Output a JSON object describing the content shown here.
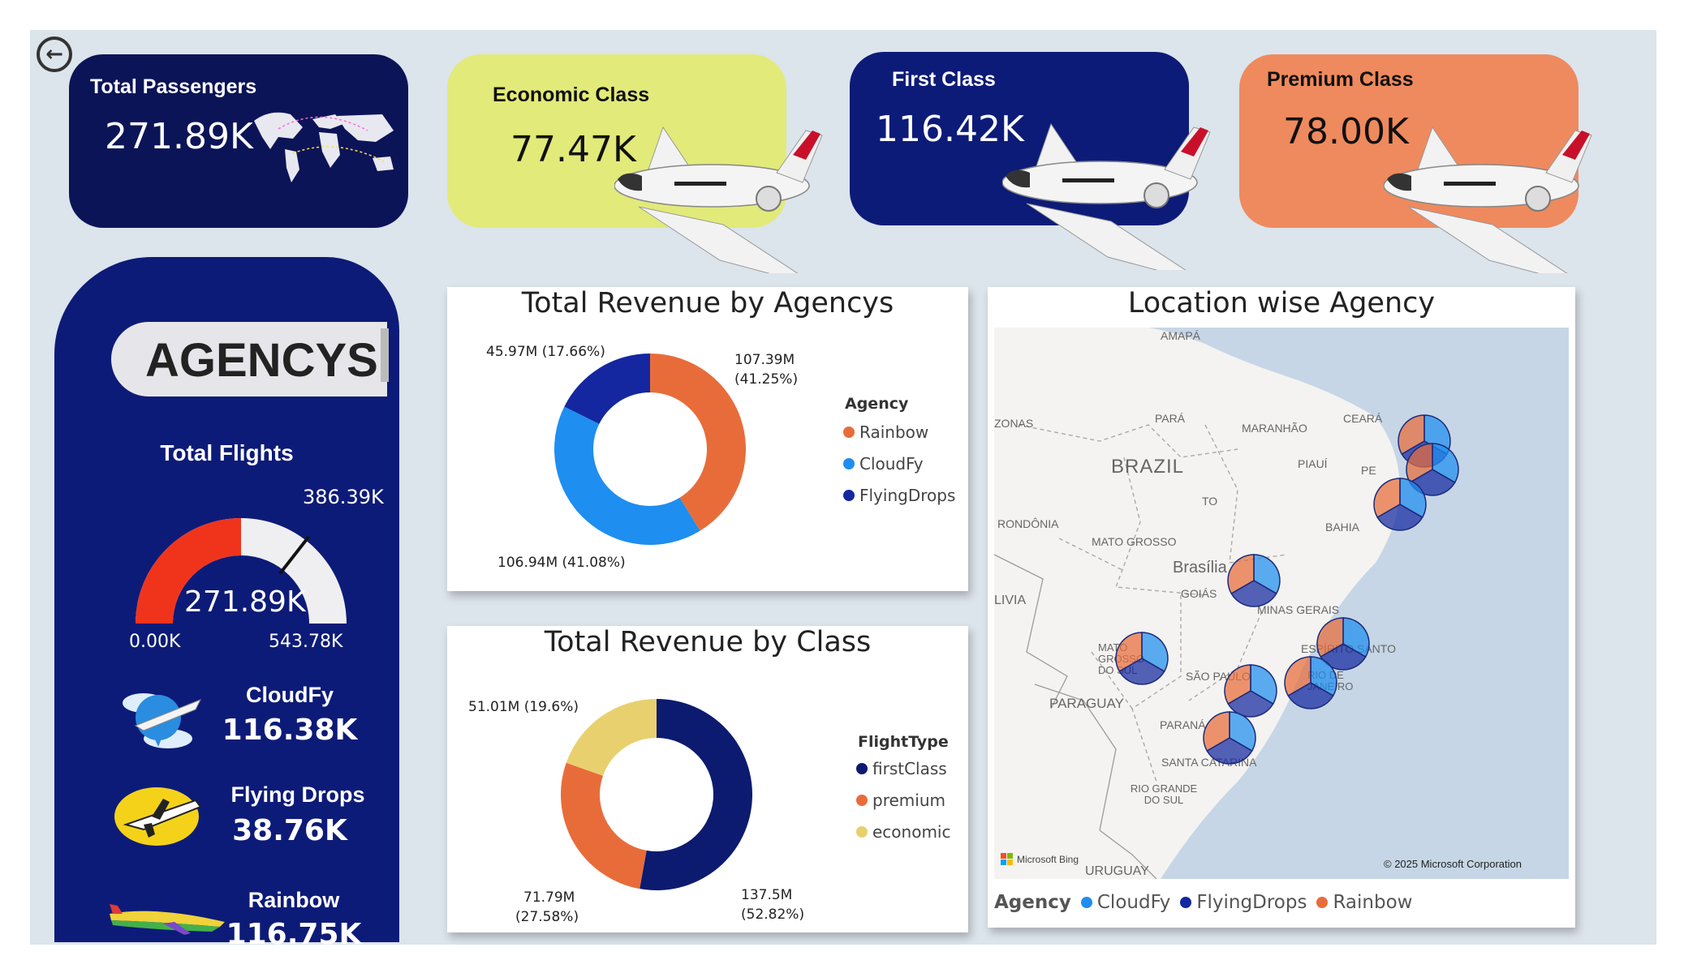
{
  "nav": {
    "back_icon": "back-arrow-icon"
  },
  "kpis": {
    "total_passengers": {
      "title": "Total Passengers",
      "value": "271.89K"
    },
    "economic": {
      "title": "Economic Class",
      "value": "77.47K"
    },
    "first": {
      "title": "First Class",
      "value": "116.42K"
    },
    "premium": {
      "title": "Premium Class",
      "value": "78.00K"
    }
  },
  "colors": {
    "navy": "#0d1b78",
    "dark_navy": "#0c1458",
    "lime": "#e2ea7a",
    "orange": "#ee8a5e",
    "rainbow": "#e86c3a",
    "cloudfy": "#1e8ef0",
    "flyingdrops": "#1427a0",
    "first_class": "#0c1a70",
    "premium_ring": "#e86c3a",
    "economic_ring": "#e8d06e",
    "gauge_fill": "#f0341c"
  },
  "agencys": {
    "heading": "AGENCYS",
    "total_flights_label": "Total Flights",
    "gauge": {
      "value": 271.89,
      "max": 543.78,
      "target": 386.39,
      "value_label": "271.89K",
      "min_label": "0.00K",
      "max_label": "543.78K",
      "target_label": "386.39K"
    },
    "items": [
      {
        "name": "CloudFy",
        "value": "116.38K"
      },
      {
        "name": "Flying Drops",
        "value": "38.76K"
      },
      {
        "name": "Rainbow",
        "value": "116.75K"
      }
    ]
  },
  "revenue_by_agency": {
    "title": "Total Revenue by Agencys",
    "legend_title": "Agency",
    "labels": {
      "rainbow_a": "107.39M",
      "rainbow_b": "(41.25%)",
      "cloudfy": "106.94M (41.08%)",
      "flyingdrops": "45.97M (17.66%)"
    }
  },
  "revenue_by_class": {
    "title": "Total Revenue by Class",
    "legend_title": "FlightType",
    "labels": {
      "first_a": "137.5M",
      "first_b": "(52.82%)",
      "premium_a": "71.79M",
      "premium_b": "(27.58%)",
      "economic": "51.01M (19.6%)"
    }
  },
  "map": {
    "title": "Location wise Agency",
    "labels": [
      "AMAPÁ",
      "ZONAS",
      "PARÁ",
      "MARANHÃO",
      "CEARÁ",
      "BRAZIL",
      "PIAUÍ",
      "PE",
      "TO",
      "RONDÔNIA",
      "BAHIA",
      "MATO GROSSO",
      "Brasília",
      "GOIÁS",
      "MINAS GERAIS",
      "LIVIA",
      "MATO GROSSO DO SUL",
      "ESPÍRITO SANTO",
      "SÃO PAULO",
      "RIO DE JANEIRO",
      "PARAGUAY",
      "PARANÁ",
      "SANTA CATARINA",
      "RIO GRANDE DO SUL",
      "URUGUAY"
    ],
    "attribution_left": "Microsoft Bing",
    "attribution_right": "© 2025 Microsoft Corporation",
    "legend_title": "Agency",
    "legend_items": [
      "CloudFy",
      "FlyingDrops",
      "Rainbow"
    ]
  },
  "chart_data": [
    {
      "type": "pie",
      "title": "Total Revenue by Agencys",
      "categories": [
        "Rainbow",
        "CloudFy",
        "FlyingDrops"
      ],
      "values": [
        107.39,
        106.94,
        45.97
      ],
      "percent": [
        41.25,
        41.08,
        17.66
      ],
      "unit": "M",
      "legend": "right"
    },
    {
      "type": "pie",
      "title": "Total Revenue by Class",
      "categories": [
        "firstClass",
        "premium",
        "economic"
      ],
      "values": [
        137.5,
        71.79,
        51.01
      ],
      "percent": [
        52.82,
        27.58,
        19.6
      ],
      "unit": "M",
      "legend": "right"
    }
  ]
}
